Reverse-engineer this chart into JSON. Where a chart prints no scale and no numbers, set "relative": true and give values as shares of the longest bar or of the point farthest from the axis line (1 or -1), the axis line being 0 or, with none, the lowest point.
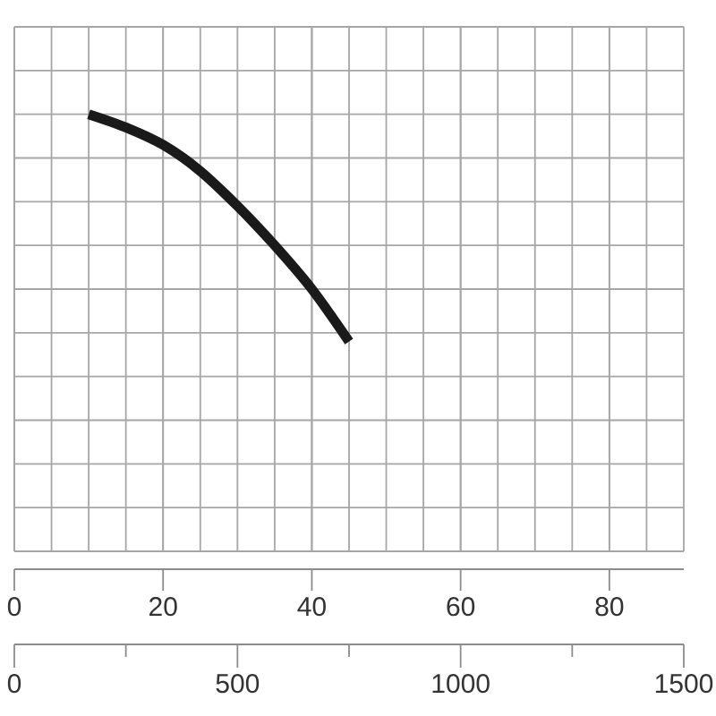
{
  "chart_data": {
    "type": "line",
    "relative": true,
    "x": [
      10,
      15,
      20,
      25,
      30,
      35,
      40,
      45
    ],
    "values": [
      1,
      0.97,
      0.93,
      0.87,
      0.79,
      0.7,
      0.6,
      0.48
    ],
    "color": "#1a1a1a",
    "xlim": [
      0,
      90
    ],
    "xticks": [
      0,
      20,
      40,
      60,
      80
    ],
    "x2lim": [
      0,
      1500
    ],
    "x2ticks": [
      0,
      {
        "value": 250,
        "label": null
      },
      500,
      {
        "value": 750,
        "label": null
      },
      1000,
      {
        "value": 1250,
        "label": null
      },
      1500
    ],
    "grid": true,
    "marker": "none",
    "line_style": "solid"
  }
}
